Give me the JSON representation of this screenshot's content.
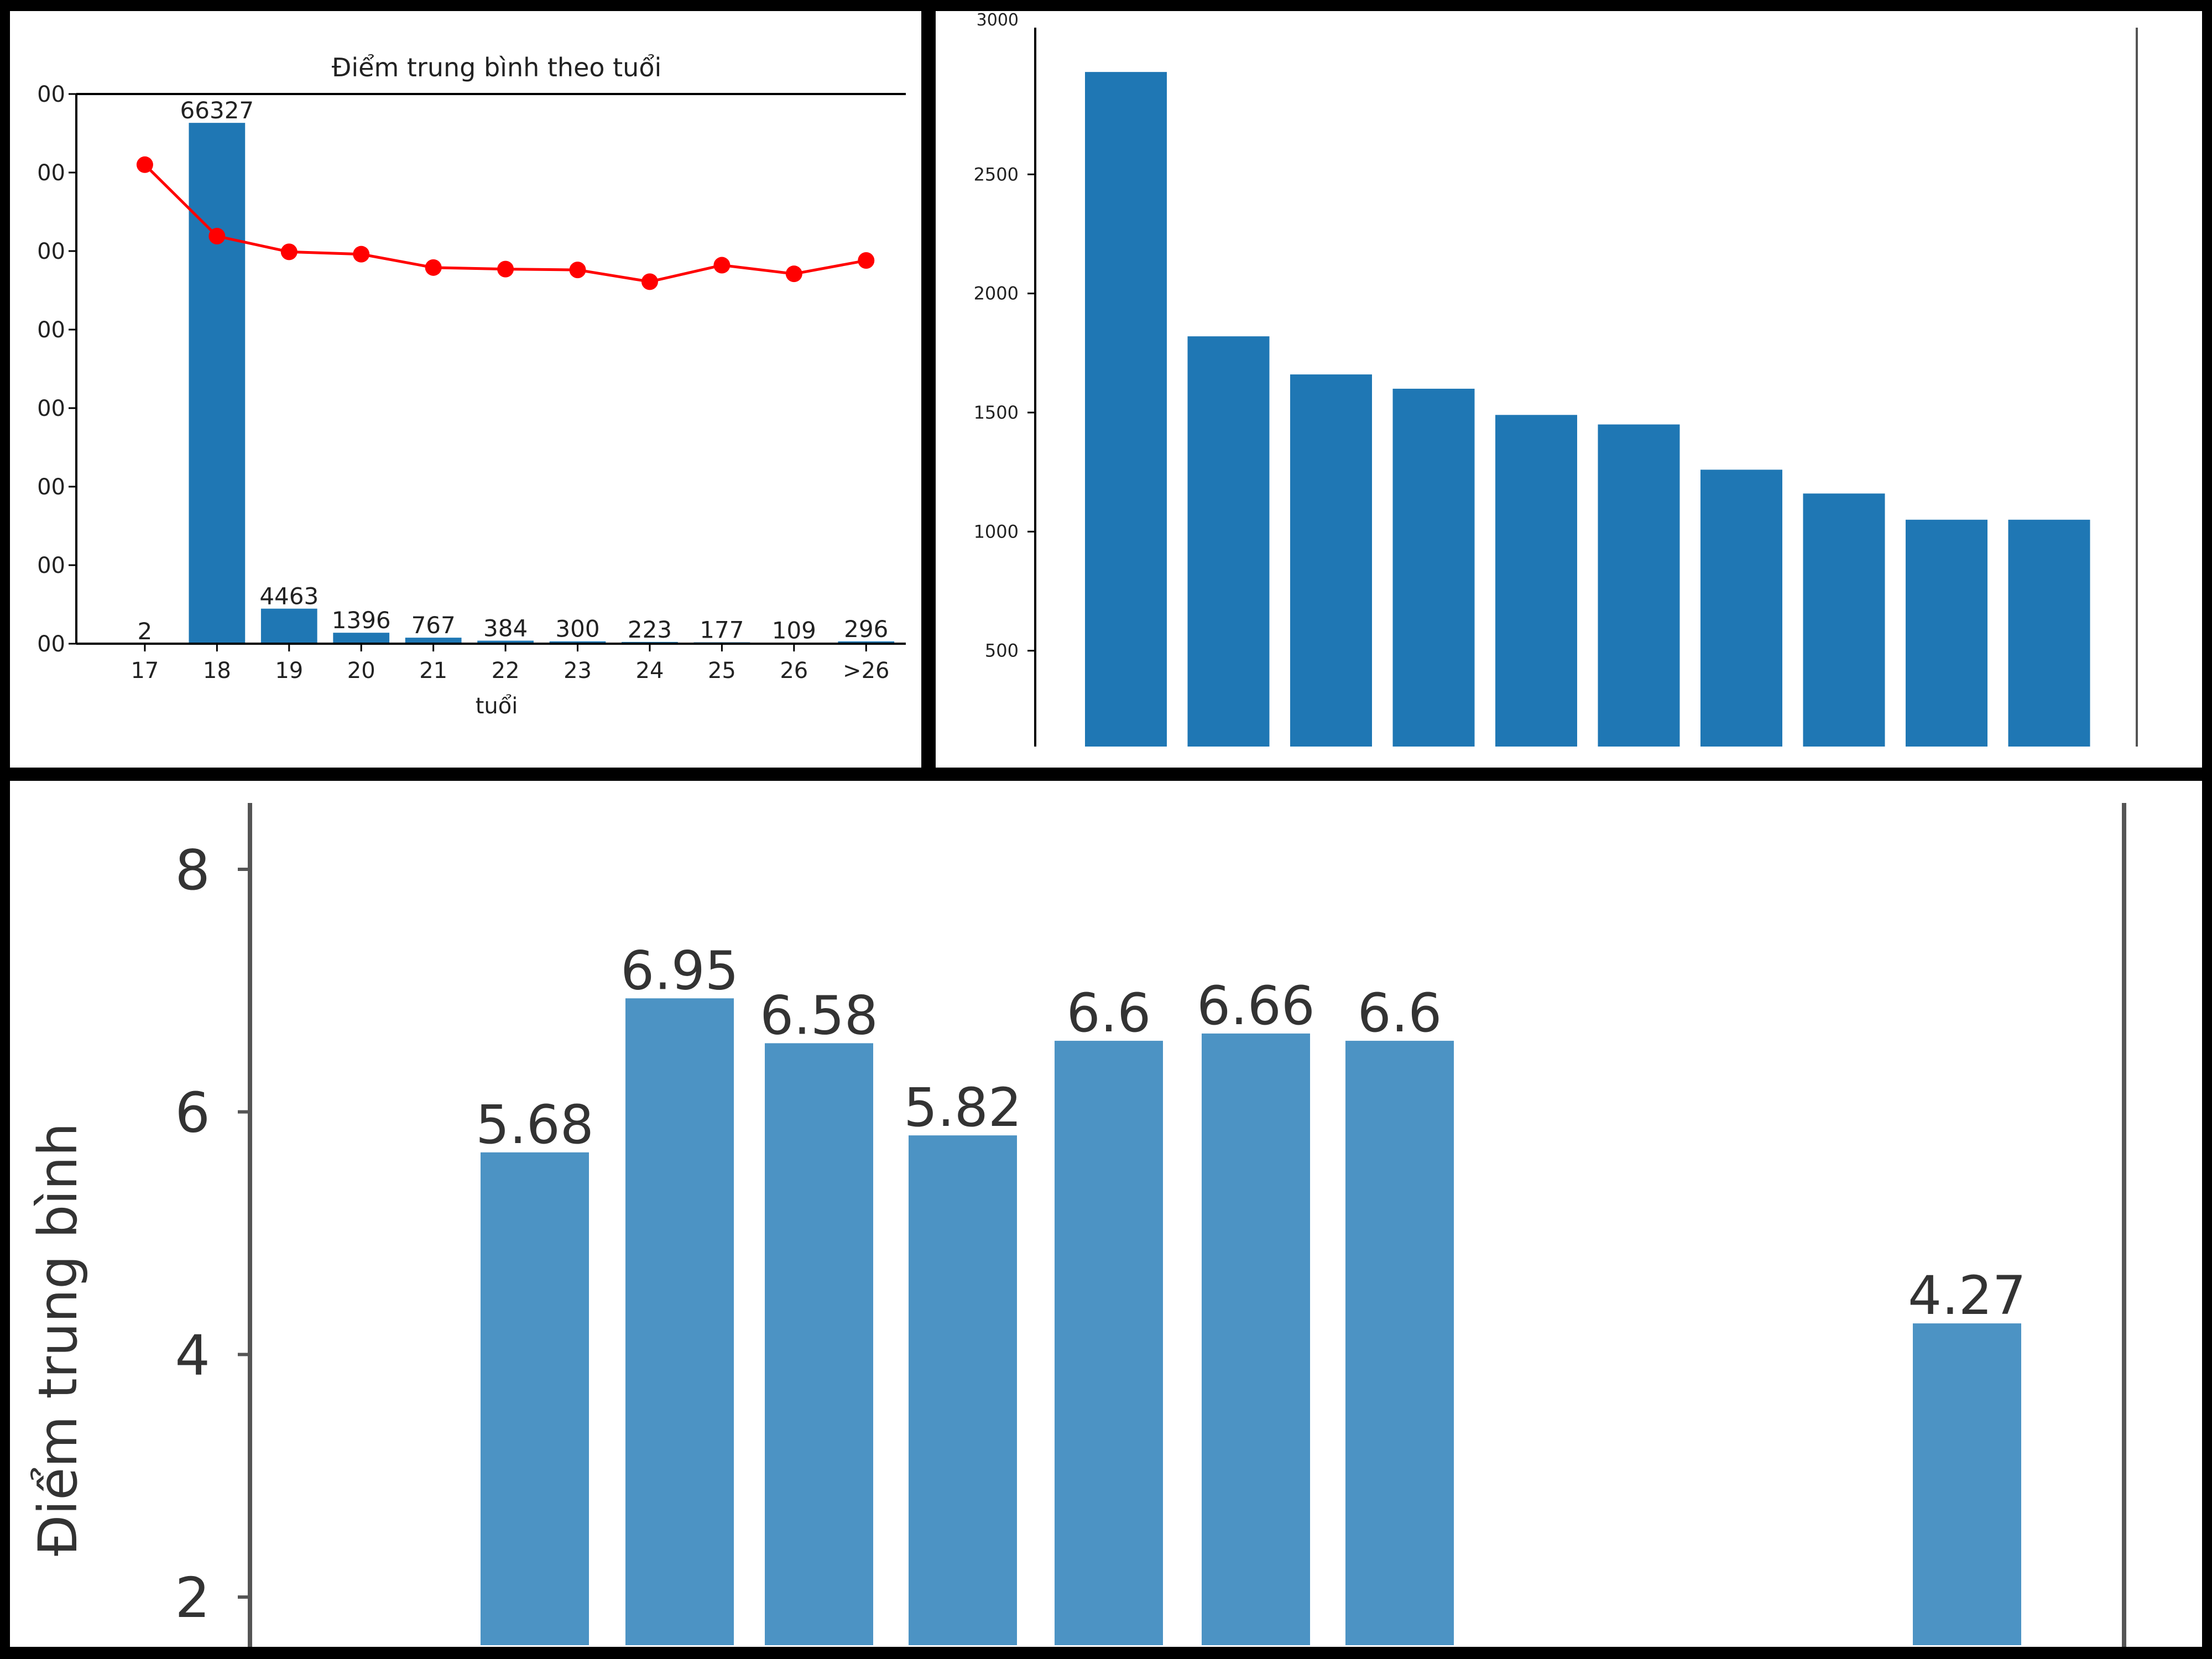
{
  "panels": {
    "p1": {
      "tick_suffix": "00"
    },
    "p2": {
      "top_tick_partial": "3000"
    }
  },
  "chart_data": [
    {
      "type": "bar",
      "title": "Điểm trung bình theo tuổi",
      "xlabel": "tuổi",
      "categories": [
        "17",
        "18",
        "19",
        "20",
        "21",
        "22",
        "23",
        "24",
        "25",
        "26",
        ">26"
      ],
      "series": [
        {
          "values": [
            2,
            66327,
            4463,
            1396,
            767,
            384,
            300,
            223,
            177,
            109,
            296
          ],
          "color": "#1f77b4",
          "data_labels": true
        },
        {
          "type": "line",
          "values": [
            6.1,
            5.19,
            4.99,
            4.96,
            4.79,
            4.77,
            4.76,
            4.61,
            4.82,
            4.71,
            4.88
          ],
          "color": "#ff0000",
          "marker": "circle"
        }
      ],
      "ylim": [
        0,
        70000
      ],
      "grid": false
    },
    {
      "type": "bar",
      "categories": [
        "",
        "",
        "",
        "",
        "",
        "",
        "",
        "",
        "",
        ""
      ],
      "values": [
        2930,
        1820,
        1660,
        1600,
        1490,
        1450,
        1260,
        1160,
        1050,
        1050
      ],
      "yticks": [
        500,
        1000,
        1500,
        2000,
        2500
      ],
      "ylim": [
        0,
        3000
      ],
      "color": "#1f77b4",
      "grid": false
    },
    {
      "type": "bar",
      "ylabel": "Điểm trung bình",
      "values": [
        5.68,
        6.95,
        6.58,
        5.82,
        6.6,
        6.66,
        6.6,
        4.27
      ],
      "data_labels": [
        "5.68",
        "6.95",
        "6.58",
        "5.82",
        "6.6",
        "6.66",
        "6.6",
        "4.27"
      ],
      "yticks": [
        "2",
        "4",
        "6",
        "8"
      ],
      "ylim": [
        1.8,
        8.6
      ],
      "color": "#4c93c4",
      "grid": false
    }
  ]
}
